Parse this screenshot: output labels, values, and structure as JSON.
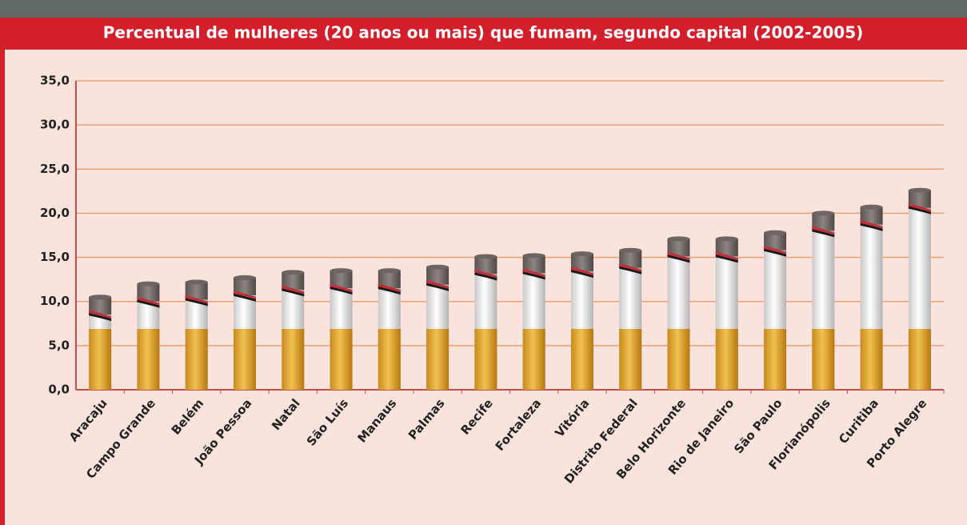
{
  "chart_data": {
    "type": "bar",
    "title": "Percentual de mulheres (20 anos ou mais) que fumam, segundo capital (2002-2005)",
    "categories": [
      "Aracaju",
      "Campo Grande",
      "Belém",
      "João Pessoa",
      "Natal",
      "São Luís",
      "Manaus",
      "Palmas",
      "Recife",
      "Fortaleza",
      "Vitória",
      "Distrito Federal",
      "Belo Horizonte",
      "Rio de Janeiro",
      "São Paulo",
      "Florianópolis",
      "Curitiba",
      "Porto Alegre"
    ],
    "values": [
      10.5,
      12.0,
      12.2,
      12.7,
      13.3,
      13.5,
      13.5,
      13.9,
      15.1,
      15.2,
      15.4,
      15.8,
      17.1,
      17.1,
      17.8,
      20.0,
      20.7,
      22.6
    ],
    "ylim": [
      0,
      35
    ],
    "yticks": [
      {
        "value": 0,
        "label": "0,0"
      },
      {
        "value": 5,
        "label": "5,0"
      },
      {
        "value": 10,
        "label": "10,0"
      },
      {
        "value": 15,
        "label": "15,0"
      },
      {
        "value": 20,
        "label": "20,0"
      },
      {
        "value": 25,
        "label": "25,0"
      },
      {
        "value": 30,
        "label": "30,0"
      },
      {
        "value": 35,
        "label": "35,0"
      }
    ],
    "grid": true
  }
}
